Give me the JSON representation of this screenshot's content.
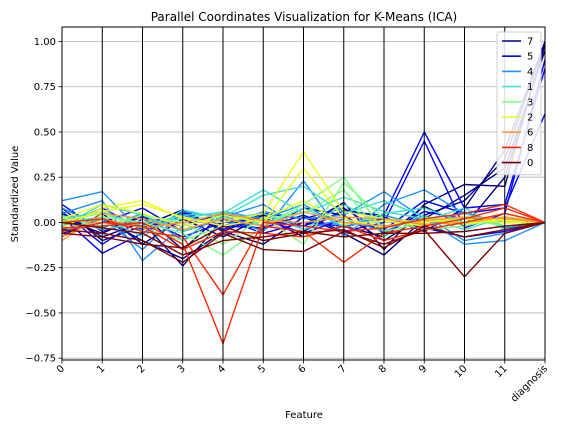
{
  "chart_data": {
    "type": "line",
    "subtype": "parallel_coordinates",
    "title": "Parallel Coordinates Visualization for K-Means (ICA)",
    "xlabel": "Feature",
    "ylabel": "Standardized Value",
    "categories": [
      "0",
      "1",
      "2",
      "3",
      "4",
      "5",
      "6",
      "7",
      "8",
      "9",
      "10",
      "11",
      "diagnosis"
    ],
    "ylim": [
      -0.76,
      1.08
    ],
    "yticks": [
      "1.00",
      "0.75",
      "0.50",
      "0.25",
      "0.00",
      "−0.25",
      "−0.50",
      "−0.75"
    ],
    "ytick_values": [
      1.0,
      0.75,
      0.5,
      0.25,
      0.0,
      -0.25,
      -0.5,
      -0.75
    ],
    "grid": true,
    "legend_position": "top-right",
    "series": [
      {
        "name": "7",
        "color": "#000080",
        "lines": [
          [
            0.08,
            -0.1,
            -0.02,
            0.07,
            -0.05,
            0.04,
            -0.02,
            0.11,
            -0.15,
            0.1,
            0.21,
            0.2,
            1.0
          ],
          [
            -0.05,
            0.02,
            -0.1,
            -0.2,
            -0.05,
            -0.12,
            0.03,
            -0.06,
            -0.18,
            0.02,
            0.15,
            0.3,
            0.95
          ],
          [
            0.02,
            -0.06,
            0.04,
            -0.15,
            0.05,
            -0.02,
            -0.05,
            0.07,
            0.03,
            -0.05,
            0.08,
            0.4,
            1.0
          ],
          [
            -0.08,
            0.05,
            -0.12,
            0.02,
            -0.08,
            0.03,
            -0.08,
            -0.02,
            -0.08,
            0.09,
            -0.02,
            0.25,
            0.98
          ],
          [
            0.05,
            -0.08,
            0.0,
            -0.24,
            0.02,
            -0.04,
            0.08,
            0.04,
            -0.1,
            0.04,
            0.12,
            0.35,
            1.0
          ]
        ]
      },
      {
        "name": "5",
        "color": "#0000ff",
        "lines": [
          [
            0.1,
            -0.05,
            0.03,
            -0.02,
            0.05,
            0.01,
            -0.02,
            0.06,
            0.04,
            0.5,
            0.08,
            0.1,
            0.85
          ],
          [
            -0.02,
            0.08,
            -0.04,
            0.05,
            -0.02,
            -0.03,
            0.04,
            -0.05,
            0.0,
            0.45,
            -0.03,
            0.05,
            0.9
          ],
          [
            0.06,
            -0.12,
            0.02,
            -0.08,
            0.0,
            0.02,
            -0.06,
            0.02,
            -0.04,
            0.12,
            0.05,
            0.08,
            0.6
          ],
          [
            -0.06,
            0.0,
            0.08,
            -0.05,
            0.02,
            -0.06,
            0.0,
            -0.02,
            0.02,
            -0.03,
            -0.08,
            -0.05,
            0.0
          ],
          [
            0.03,
            -0.17,
            -0.06,
            0.06,
            -0.04,
            0.05,
            0.02,
            0.08,
            -0.06,
            0.06,
            0.02,
            0.02,
            0.0
          ]
        ]
      },
      {
        "name": "4",
        "color": "#1e90ff",
        "lines": [
          [
            0.12,
            0.17,
            -0.06,
            0.04,
            -0.02,
            0.06,
            0.02,
            0.04,
            0.17,
            0.02,
            -0.12,
            -0.1,
            0.0
          ],
          [
            0.05,
            0.12,
            -0.21,
            -0.02,
            0.04,
            -0.05,
            0.23,
            -0.08,
            0.1,
            0.18,
            0.05,
            0.0,
            0.0
          ],
          [
            -0.04,
            0.02,
            -0.15,
            0.06,
            0.03,
            0.1,
            -0.04,
            0.02,
            -0.05,
            0.04,
            -0.1,
            -0.06,
            0.0
          ],
          [
            0.08,
            -0.03,
            0.05,
            -0.1,
            0.06,
            0.02,
            0.1,
            -0.03,
            0.04,
            -0.02,
            0.06,
            -0.03,
            0.0
          ]
        ]
      },
      {
        "name": "1",
        "color": "#40e0d0",
        "lines": [
          [
            0.02,
            0.06,
            -0.02,
            0.04,
            0.05,
            0.18,
            0.05,
            0.14,
            0.06,
            0.02,
            0.05,
            -0.02,
            0.0
          ],
          [
            -0.02,
            0.1,
            0.04,
            -0.05,
            0.03,
            0.15,
            0.2,
            0.05,
            0.12,
            0.03,
            -0.04,
            0.03,
            0.0
          ],
          [
            0.04,
            -0.04,
            0.0,
            0.02,
            0.06,
            -0.02,
            0.08,
            -0.02,
            0.05,
            0.08,
            0.0,
            0.05,
            0.0
          ],
          [
            0.0,
            0.03,
            -0.08,
            0.07,
            0.02,
            0.05,
            -0.04,
            0.1,
            -0.02,
            0.01,
            0.08,
            -0.04,
            0.0
          ]
        ]
      },
      {
        "name": "3",
        "color": "#7fff7f",
        "lines": [
          [
            -0.05,
            0.03,
            0.0,
            -0.06,
            -0.18,
            -0.02,
            0.1,
            0.25,
            -0.05,
            0.0,
            0.02,
            -0.02,
            0.0
          ],
          [
            0.03,
            -0.02,
            0.04,
            0.0,
            -0.12,
            0.03,
            -0.12,
            0.22,
            0.02,
            -0.04,
            -0.02,
            0.03,
            0.0
          ],
          [
            0.01,
            0.05,
            -0.03,
            -0.1,
            -0.02,
            0.02,
            0.05,
            0.18,
            -0.08,
            0.03,
            0.0,
            0.0,
            0.0
          ]
        ]
      },
      {
        "name": "2",
        "color": "#e8ff1a",
        "lines": [
          [
            -0.03,
            0.08,
            0.12,
            0.02,
            0.0,
            0.05,
            0.39,
            0.06,
            0.02,
            0.0,
            0.03,
            0.01,
            0.0
          ],
          [
            0.02,
            0.1,
            0.05,
            -0.02,
            0.04,
            0.0,
            0.3,
            0.02,
            -0.03,
            0.02,
            -0.01,
            0.02,
            0.0
          ],
          [
            0.0,
            0.06,
            0.1,
            0.03,
            -0.02,
            0.02,
            0.12,
            -0.01,
            0.01,
            -0.02,
            0.02,
            0.0,
            0.0
          ]
        ]
      },
      {
        "name": "6",
        "color": "#ff9933",
        "lines": [
          [
            -0.1,
            0.05,
            0.02,
            -0.04,
            0.02,
            -0.02,
            0.06,
            0.0,
            -0.02,
            0.01,
            0.03,
            0.02,
            0.0
          ],
          [
            -0.08,
            0.02,
            -0.03,
            0.0,
            0.05,
            0.01,
            0.0,
            0.03,
            0.02,
            -0.01,
            0.0,
            0.03,
            0.0
          ]
        ]
      },
      {
        "name": "8",
        "color": "#ff2a00",
        "lines": [
          [
            -0.03,
            -0.02,
            0.0,
            -0.12,
            -0.67,
            -0.02,
            -0.05,
            -0.22,
            -0.06,
            -0.02,
            0.02,
            0.08,
            0.0
          ],
          [
            0.0,
            0.02,
            -0.05,
            -0.08,
            -0.4,
            0.0,
            -0.02,
            -0.05,
            -0.03,
            0.02,
            0.05,
            0.1,
            0.0
          ],
          [
            -0.05,
            0.0,
            -0.02,
            -0.15,
            -0.05,
            -0.06,
            -0.08,
            -0.02,
            -0.1,
            -0.04,
            0.0,
            0.05,
            0.0
          ]
        ]
      },
      {
        "name": "0",
        "color": "#800000",
        "lines": [
          [
            -0.04,
            -0.06,
            -0.1,
            -0.22,
            -0.06,
            -0.15,
            -0.16,
            -0.05,
            -0.12,
            -0.04,
            -0.3,
            -0.06,
            0.0
          ],
          [
            0.0,
            -0.03,
            -0.06,
            -0.18,
            -0.1,
            -0.08,
            -0.05,
            -0.08,
            -0.06,
            -0.06,
            -0.05,
            -0.02,
            0.0
          ],
          [
            -0.06,
            -0.08,
            -0.12,
            -0.14,
            -0.02,
            -0.1,
            -0.06,
            -0.04,
            -0.14,
            -0.02,
            -0.08,
            -0.04,
            0.0
          ]
        ]
      }
    ]
  }
}
